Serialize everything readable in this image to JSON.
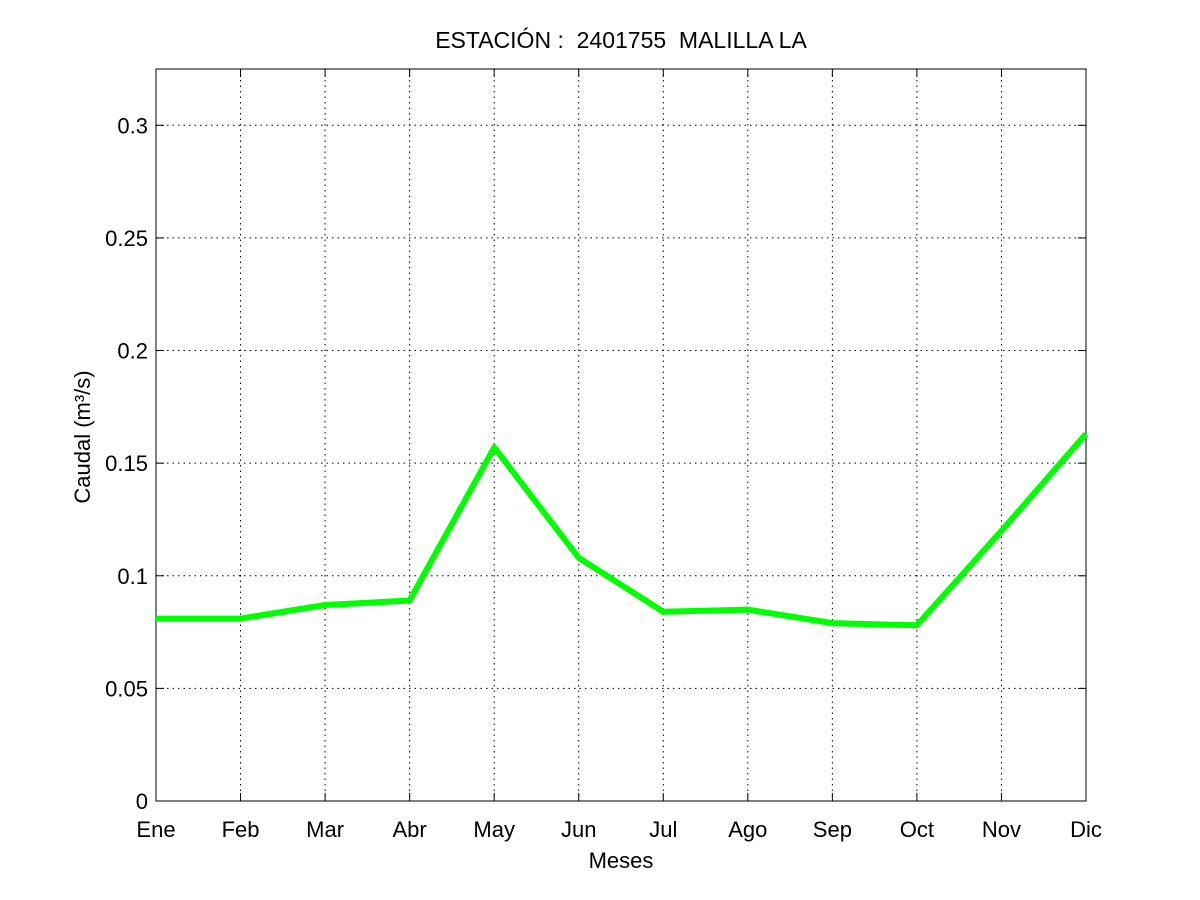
{
  "chart_data": {
    "type": "line",
    "title": "ESTACIÓN :  2401755  MALILLA LA",
    "xlabel": "Meses",
    "ylabel": "Caudal (m³/s)",
    "categories": [
      "Ene",
      "Feb",
      "Mar",
      "Abr",
      "May",
      "Jun",
      "Jul",
      "Ago",
      "Sep",
      "Oct",
      "Nov",
      "Dic"
    ],
    "series": [
      {
        "values": [
          0.081,
          0.081,
          0.087,
          0.089,
          0.157,
          0.108,
          0.084,
          0.085,
          0.079,
          0.078,
          0.12,
          0.163
        ],
        "color": "#00ff00"
      }
    ],
    "yticks": [
      0,
      0.05,
      0.1,
      0.15,
      0.2,
      0.25,
      0.3
    ],
    "ytick_labels": [
      "0",
      "0.05",
      "0.1",
      "0.15",
      "0.2",
      "0.25",
      "0.3"
    ],
    "ylim": [
      0,
      0.325
    ],
    "grid": true
  }
}
